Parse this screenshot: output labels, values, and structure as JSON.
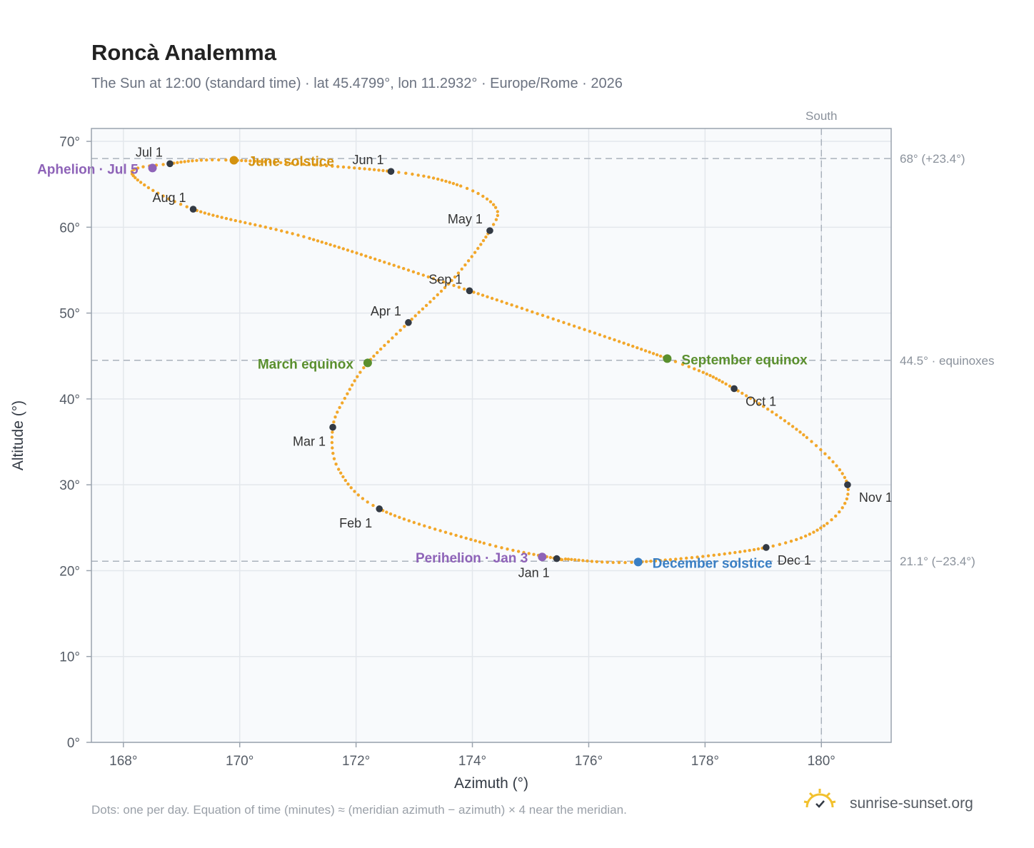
{
  "header": {
    "title": "Roncà Analemma",
    "subtitle": "The Sun at 12:00 (standard time) · lat 45.4799°, lon 11.2932° · Europe/Rome · 2026"
  },
  "footer": {
    "note": "Dots: one per day. Equation of time (minutes) ≈ (meridian azimuth − azimuth) × 4 near the meridian.",
    "brand": "sunrise-sunset.org",
    "logo_icon": "sun-check-icon"
  },
  "colors": {
    "curve": "#f2a72a",
    "month_marker": "#333a44",
    "solstice_june": "#d4920f",
    "equinox": "#5a8f2e",
    "solstice_december": "#3a7fc4",
    "aphelion_perihelion": "#8e63b8",
    "plot_background": "#f8fafc",
    "grid": "#e3e7ec",
    "frame": "#9aa3ae",
    "reference_line": "#aab2bc"
  },
  "chart_data": {
    "type": "scatter",
    "xlabel": "Azimuth (°)",
    "ylabel": "Altitude (°)",
    "xlim": [
      167.45,
      181.2
    ],
    "ylim": [
      0,
      71.5
    ],
    "x_ticks": [
      {
        "value": 168,
        "label": "168°"
      },
      {
        "value": 170,
        "label": "170°"
      },
      {
        "value": 172,
        "label": "172°"
      },
      {
        "value": 174,
        "label": "174°"
      },
      {
        "value": 176,
        "label": "176°"
      },
      {
        "value": 178,
        "label": "178°"
      },
      {
        "value": 180,
        "label": "180°"
      }
    ],
    "y_ticks": [
      {
        "value": 0,
        "label": "0°"
      },
      {
        "value": 10,
        "label": "10°"
      },
      {
        "value": 20,
        "label": "20°"
      },
      {
        "value": 30,
        "label": "30°"
      },
      {
        "value": 40,
        "label": "40°"
      },
      {
        "value": 50,
        "label": "50°"
      },
      {
        "value": 60,
        "label": "60°"
      },
      {
        "value": 70,
        "label": "70°"
      }
    ],
    "grid": true,
    "meridian": {
      "azimuth": 180,
      "label": "South"
    },
    "reference_lines": [
      {
        "altitude": 68.0,
        "label": "68° (+23.4°)"
      },
      {
        "altitude": 44.5,
        "label": "44.5° · equinoxes"
      },
      {
        "altitude": 21.1,
        "label": "21.1° (−23.4°)"
      }
    ],
    "daily_path": [
      {
        "day": "Jan 1",
        "az": 175.45,
        "alt": 21.4
      },
      {
        "day": "Jan 15",
        "az": 174.2,
        "alt": 23.2
      },
      {
        "day": "Feb 1",
        "az": 172.4,
        "alt": 27.2
      },
      {
        "day": "Feb 15",
        "az": 171.7,
        "alt": 31.8
      },
      {
        "day": "Mar 1",
        "az": 171.6,
        "alt": 36.7
      },
      {
        "day": "Mar 10",
        "az": 171.85,
        "alt": 40.6
      },
      {
        "day": "Mar 20",
        "az": 172.2,
        "alt": 44.2
      },
      {
        "day": "Apr 1",
        "az": 172.9,
        "alt": 48.9
      },
      {
        "day": "Apr 15",
        "az": 173.7,
        "alt": 54.2
      },
      {
        "day": "May 1",
        "az": 174.3,
        "alt": 59.6
      },
      {
        "day": "May 10",
        "az": 174.4,
        "alt": 62.3
      },
      {
        "day": "May 20",
        "az": 173.8,
        "alt": 64.8
      },
      {
        "day": "Jun 1",
        "az": 172.6,
        "alt": 66.5
      },
      {
        "day": "Jun 21",
        "az": 169.9,
        "alt": 67.8
      },
      {
        "day": "Jul 1",
        "az": 168.8,
        "alt": 67.4
      },
      {
        "day": "Jul 15",
        "az": 168.15,
        "alt": 66.2
      },
      {
        "day": "Aug 1",
        "az": 169.2,
        "alt": 62.1
      },
      {
        "day": "Aug 15",
        "az": 171.2,
        "alt": 58.7
      },
      {
        "day": "Sep 1",
        "az": 173.95,
        "alt": 52.6
      },
      {
        "day": "Sep 23",
        "az": 177.35,
        "alt": 44.7
      },
      {
        "day": "Oct 1",
        "az": 178.5,
        "alt": 41.2
      },
      {
        "day": "Oct 15",
        "az": 179.75,
        "alt": 35.5
      },
      {
        "day": "Nov 1",
        "az": 180.45,
        "alt": 30.0
      },
      {
        "day": "Nov 15",
        "az": 180.1,
        "alt": 25.5
      },
      {
        "day": "Dec 1",
        "az": 179.05,
        "alt": 22.7
      },
      {
        "day": "Dec 21",
        "az": 176.85,
        "alt": 21.0
      },
      {
        "day": "Dec 31",
        "az": 175.6,
        "alt": 21.35
      }
    ],
    "month_markers": [
      {
        "label": "Jan 1",
        "az": 175.45,
        "alt": 21.4,
        "anchor": "bl"
      },
      {
        "label": "Feb 1",
        "az": 172.4,
        "alt": 27.2,
        "anchor": "bl"
      },
      {
        "label": "Mar 1",
        "az": 171.6,
        "alt": 36.7,
        "anchor": "bl"
      },
      {
        "label": "Apr 1",
        "az": 172.9,
        "alt": 48.9,
        "anchor": "tl"
      },
      {
        "label": "May 1",
        "az": 174.3,
        "alt": 59.6,
        "anchor": "tl"
      },
      {
        "label": "Jun 1",
        "az": 172.6,
        "alt": 66.5,
        "anchor": "tl"
      },
      {
        "label": "Jul 1",
        "az": 168.8,
        "alt": 67.4,
        "anchor": "tl"
      },
      {
        "label": "Aug 1",
        "az": 169.2,
        "alt": 62.1,
        "anchor": "tl"
      },
      {
        "label": "Sep 1",
        "az": 173.95,
        "alt": 52.6,
        "anchor": "tl"
      },
      {
        "label": "Oct 1",
        "az": 178.5,
        "alt": 41.2,
        "anchor": "br"
      },
      {
        "label": "Nov 1",
        "az": 180.45,
        "alt": 30.0,
        "anchor": "br"
      },
      {
        "label": "Dec 1",
        "az": 179.05,
        "alt": 22.7,
        "anchor": "br"
      }
    ],
    "events": [
      {
        "label": "June solstice",
        "az": 169.9,
        "alt": 67.8,
        "color_key": "solstice_june",
        "side": "right"
      },
      {
        "label": "March equinox",
        "az": 172.2,
        "alt": 44.2,
        "color_key": "equinox",
        "side": "left"
      },
      {
        "label": "September equinox",
        "az": 177.35,
        "alt": 44.7,
        "color_key": "equinox",
        "side": "right"
      },
      {
        "label": "December solstice",
        "az": 176.85,
        "alt": 21.0,
        "color_key": "solstice_december",
        "side": "right"
      },
      {
        "label": "Aphelion · Jul 5",
        "az": 168.5,
        "alt": 66.9,
        "color_key": "aphelion_perihelion",
        "side": "left"
      },
      {
        "label": "Perihelion · Jan 3",
        "az": 175.2,
        "alt": 21.6,
        "color_key": "aphelion_perihelion",
        "side": "left"
      }
    ]
  }
}
